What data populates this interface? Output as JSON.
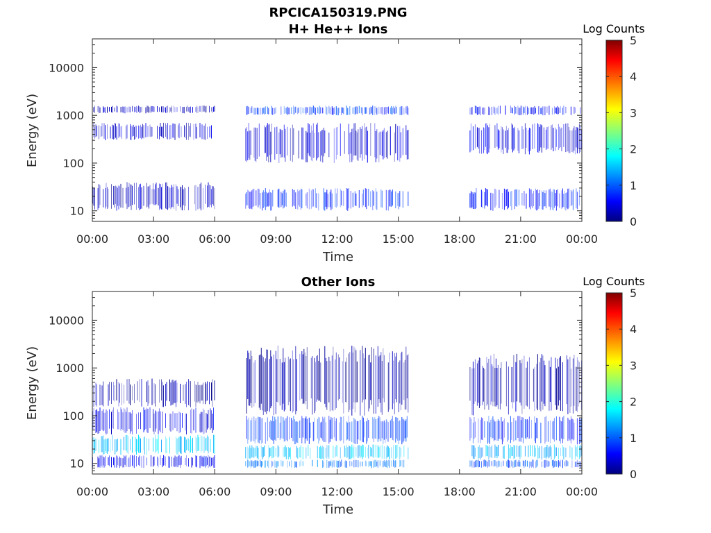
{
  "figure": {
    "filename": "RPCICA150319.PNG"
  },
  "chart_data": [
    {
      "type": "heatmap",
      "title": "H+ He++ Ions",
      "xlabel": "Time",
      "ylabel": "Energy (eV)",
      "yscale": "log",
      "ylim": [
        6,
        40000
      ],
      "xlim": [
        "00:00",
        "24:00"
      ],
      "x_ticks": [
        "00:00",
        "03:00",
        "06:00",
        "09:00",
        "12:00",
        "15:00",
        "18:00",
        "21:00",
        "00:00"
      ],
      "y_ticks": [
        "10",
        "100",
        "1000",
        "10000"
      ],
      "colorbar": {
        "label": "Log Counts",
        "range": [
          0,
          5
        ],
        "ticks": [
          "0",
          "1",
          "2",
          "3",
          "4",
          "5"
        ],
        "colormap": "jet"
      },
      "data_gaps": [
        [
          "06:00",
          "07:30"
        ],
        [
          "15:30",
          "18:30"
        ]
      ],
      "bands": [
        {
          "t_start": "00:00",
          "t_end": "06:00",
          "e_low": 10,
          "e_high": 40,
          "log_counts": 0.3
        },
        {
          "t_start": "00:00",
          "t_end": "06:00",
          "e_low": 300,
          "e_high": 700,
          "log_counts": 0.4
        },
        {
          "t_start": "00:00",
          "t_end": "06:00",
          "e_low": 1100,
          "e_high": 1600,
          "log_counts": 0.3
        },
        {
          "t_start": "07:30",
          "t_end": "15:30",
          "e_low": 10,
          "e_high": 30,
          "log_counts": 0.8
        },
        {
          "t_start": "07:30",
          "t_end": "15:30",
          "e_low": 100,
          "e_high": 700,
          "log_counts": 0.4
        },
        {
          "t_start": "07:30",
          "t_end": "15:30",
          "e_low": 1000,
          "e_high": 1600,
          "log_counts": 0.9
        },
        {
          "t_start": "18:30",
          "t_end": "24:00",
          "e_low": 10,
          "e_high": 30,
          "log_counts": 0.8
        },
        {
          "t_start": "18:30",
          "t_end": "24:00",
          "e_low": 150,
          "e_high": 700,
          "log_counts": 0.5
        },
        {
          "t_start": "18:30",
          "t_end": "24:00",
          "e_low": 1000,
          "e_high": 1600,
          "log_counts": 0.7
        }
      ]
    },
    {
      "type": "heatmap",
      "title": "Other Ions",
      "xlabel": "Time",
      "ylabel": "Energy (eV)",
      "yscale": "log",
      "ylim": [
        6,
        40000
      ],
      "xlim": [
        "00:00",
        "24:00"
      ],
      "x_ticks": [
        "00:00",
        "03:00",
        "06:00",
        "09:00",
        "12:00",
        "15:00",
        "18:00",
        "21:00",
        "00:00"
      ],
      "y_ticks": [
        "10",
        "100",
        "1000",
        "10000"
      ],
      "colorbar": {
        "label": "Log Counts",
        "range": [
          0,
          5
        ],
        "ticks": [
          "0",
          "1",
          "2",
          "3",
          "4",
          "5"
        ],
        "colormap": "jet"
      },
      "data_gaps": [
        [
          "06:00",
          "07:30"
        ],
        [
          "15:30",
          "18:30"
        ]
      ],
      "bands": [
        {
          "t_start": "00:00",
          "t_end": "06:00",
          "e_low": 8,
          "e_high": 15,
          "log_counts": 0.6
        },
        {
          "t_start": "00:00",
          "t_end": "06:00",
          "e_low": 15,
          "e_high": 40,
          "log_counts": 1.6
        },
        {
          "t_start": "00:00",
          "t_end": "06:00",
          "e_low": 40,
          "e_high": 150,
          "log_counts": 0.5
        },
        {
          "t_start": "00:00",
          "t_end": "06:00",
          "e_low": 150,
          "e_high": 600,
          "log_counts": 0.2
        },
        {
          "t_start": "07:30",
          "t_end": "15:30",
          "e_low": 8,
          "e_high": 12,
          "log_counts": 1.2
        },
        {
          "t_start": "07:30",
          "t_end": "15:30",
          "e_low": 12,
          "e_high": 25,
          "log_counts": 1.6
        },
        {
          "t_start": "07:30",
          "t_end": "15:30",
          "e_low": 25,
          "e_high": 100,
          "log_counts": 0.9
        },
        {
          "t_start": "07:30",
          "t_end": "15:30",
          "e_low": 100,
          "e_high": 3000,
          "log_counts": 0.2
        },
        {
          "t_start": "18:30",
          "t_end": "24:00",
          "e_low": 8,
          "e_high": 12,
          "log_counts": 1.0
        },
        {
          "t_start": "18:30",
          "t_end": "24:00",
          "e_low": 12,
          "e_high": 25,
          "log_counts": 1.5
        },
        {
          "t_start": "18:30",
          "t_end": "24:00",
          "e_low": 25,
          "e_high": 100,
          "log_counts": 0.8
        },
        {
          "t_start": "18:30",
          "t_end": "24:00",
          "e_low": 100,
          "e_high": 2000,
          "log_counts": 0.25
        }
      ]
    }
  ]
}
